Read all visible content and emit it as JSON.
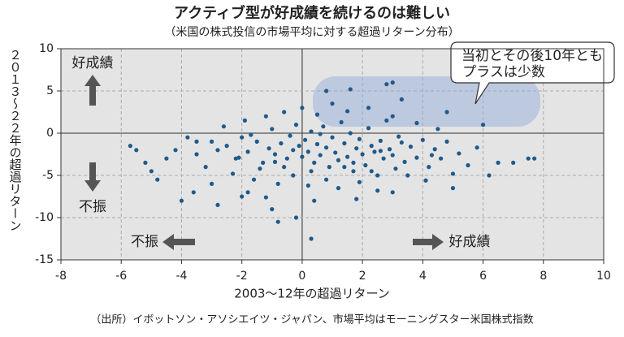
{
  "chart_data": {
    "type": "scatter",
    "title": "アクティブ型が好成績を続けるのは難しい",
    "subtitle": "（米国の株式投信の市場平均に対する超過リターン分布）",
    "x_label": "2003〜12年の超過リターン",
    "y_label": "２０１３〜２２年の超過リターン",
    "source": "（出所）イボットソン・アソシエイツ・ジャパン、市場平均はモーニングスター米国株式指数",
    "annotations": {
      "good_top": "好成績",
      "bad_top": "不振",
      "bad_bottom": "不振",
      "good_bottom": "好成績",
      "callout": [
        "当初とその後10年とも",
        "プラスは少数"
      ]
    },
    "xlim": [
      -8,
      10
    ],
    "xticks": [
      -8,
      -6,
      -4,
      -2,
      0,
      2,
      4,
      6,
      8,
      10
    ],
    "ylim": [
      -15,
      10
    ],
    "yticks": [
      -15,
      -10,
      -5,
      0,
      5,
      10
    ],
    "grid": true,
    "x": [
      -5.7,
      -5.5,
      -5,
      -4.8,
      -4,
      -3.5,
      -0.8,
      -0.2,
      0.3,
      0.8,
      1.6,
      2.8,
      3,
      3.3,
      4.8,
      5,
      6,
      6.5,
      7,
      7.5,
      7.7,
      6.2,
      -2,
      -1.8,
      -2.8,
      -1,
      -3,
      -2.8,
      -2.5,
      -2.2,
      -2,
      -1.8,
      -1.5,
      -1.3,
      -1.1,
      -1,
      -0.9,
      -0.7,
      -0.5,
      -0.4,
      -0.3,
      -0.2,
      -0.1,
      0,
      0.1,
      0.2,
      0.3,
      0.4,
      0.5,
      0.6,
      0.7,
      0.8,
      0.9,
      1,
      1.1,
      1.2,
      1.3,
      1.4,
      1.5,
      1.6,
      1.7,
      1.8,
      1.9,
      2,
      2.1,
      2.2,
      2.3,
      2.4,
      2.5,
      2.6,
      2.7,
      2.8,
      2.9,
      3,
      3.2,
      3.4,
      3.6,
      3.8,
      4,
      4.2,
      4.4,
      4.6,
      4.8,
      5.2,
      5.5,
      5.8,
      -3.5,
      -3.2,
      -3.8,
      -4.2,
      -4.5,
      -2.6,
      -2.3,
      -1.9,
      -1.6,
      -1.2,
      -0.8,
      -0.6,
      -0.3,
      0,
      0.2,
      0.5,
      0.8,
      1,
      1.2,
      1.5,
      1.9,
      2.2,
      2.5,
      3,
      3.5,
      3.8,
      4.1,
      4.5,
      5,
      -1.4,
      -0.6,
      0.3,
      1.4,
      2.3,
      3.1,
      -2.1,
      -1.7,
      -0.9,
      0.6,
      1.7,
      2.6,
      3.3,
      4.3,
      -1.2,
      0.4,
      1.8,
      3,
      -3,
      -3.6,
      -5.2
    ],
    "series": [
      {
        "color": "#1f5a8a",
        "values": [
          -1.5,
          -2,
          -4.5,
          -5.5,
          -8,
          -1,
          -10.5,
          -10,
          -12.5,
          5,
          5.2,
          5.8,
          6,
          4,
          2.5,
          -6.5,
          1,
          -3.5,
          -3.5,
          -3,
          -3,
          -5,
          -7.5,
          -7,
          -8.5,
          -9,
          -1,
          -2,
          -1.5,
          -3,
          -0.5,
          -2.2,
          -1,
          -3.5,
          -1.8,
          0.5,
          -2.5,
          -1.2,
          -3,
          -0.3,
          -2,
          1,
          -1.5,
          -2.8,
          -0.8,
          -2.2,
          0.2,
          -3.5,
          -1.3,
          -2.6,
          0.8,
          -1.7,
          -4,
          -0.5,
          -2.3,
          -3.2,
          1.3,
          -1.2,
          -2.8,
          0,
          -4.5,
          -1.8,
          -0.7,
          -2.5,
          -3.8,
          0.6,
          -1.5,
          -2.2,
          -5,
          -0.9,
          -3,
          1.5,
          -1.9,
          -2.6,
          -0.4,
          -3.4,
          -1.6,
          -2.9,
          -0.8,
          -4,
          -1.9,
          -3,
          -1,
          -2.4,
          -3.8,
          -1.7,
          -2.5,
          -4,
          -0.5,
          -2,
          -3,
          0.8,
          -4.8,
          1.5,
          -5.5,
          2,
          -6,
          2.5,
          -5,
          3,
          -6.2,
          2.2,
          -5.5,
          3.5,
          -6.5,
          2.6,
          -5.8,
          3,
          -6.8,
          2,
          -5,
          1.2,
          -5.6,
          0.5,
          -4.8,
          -4.2,
          -4,
          -4.5,
          -4,
          -4.5,
          -4.2,
          -2.9,
          -0.2,
          -3.4,
          -0.1,
          -3.5,
          -2.1,
          -1.1,
          -2.6,
          -7.6,
          -8,
          -7.8,
          -7,
          -6,
          -7,
          -3.5
        ]
      }
    ]
  }
}
